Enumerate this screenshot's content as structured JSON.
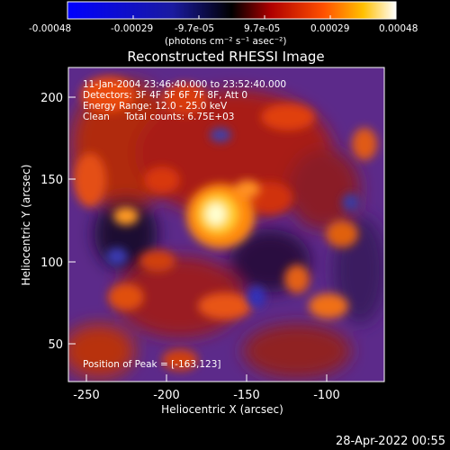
{
  "colorbar": {
    "tick_labels": [
      "-0.00048",
      "-0.00029",
      "-9.7e-05",
      "9.7e-05",
      "0.00029",
      "0.00048"
    ],
    "units_label": "(photons cm⁻² s⁻¹ asec⁻²)",
    "range": [
      -0.00048,
      0.00048
    ]
  },
  "image": {
    "title": "Reconstructed RHESSI Image",
    "info_lines": [
      "11-Jan-2004 23:46:40.000 to 23:52:40.000",
      "Detectors: 3F 4F 5F 6F 7F 8F, Att 0",
      "Energy Range: 12.0 - 25.0 keV",
      "Clean     Total counts: 6.75E+03"
    ],
    "peak_label": "Position of Peak = [-163,123]",
    "peak_position": [
      -163,
      123
    ],
    "xlabel": "Heliocentric X (arcsec)",
    "ylabel": "Heliocentric Y (arcsec)",
    "x_ticks": [
      "-250",
      "-200",
      "-150",
      "-100"
    ],
    "x_tick_values": [
      -250,
      -200,
      -150,
      -100
    ],
    "y_ticks": [
      "50",
      "100",
      "150",
      "200"
    ],
    "y_tick_values": [
      50,
      100,
      150,
      200
    ],
    "xlim": [
      -263,
      -66
    ],
    "ylim": [
      27,
      223
    ]
  },
  "timestamp": "28-Apr-2022 00:55"
}
